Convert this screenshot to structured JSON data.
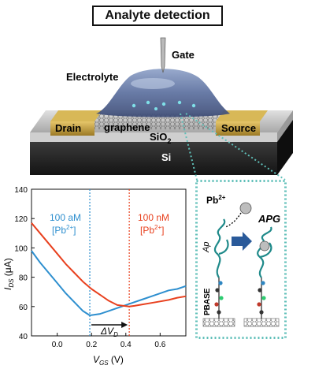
{
  "title": "Analyte detection",
  "device": {
    "gate": "Gate",
    "electrolyte": "Electrolyte",
    "drain": "Drain",
    "graphene": "graphene",
    "source": "Source",
    "oxide": {
      "base": "SiO",
      "sub": "2"
    },
    "substrate": "Si"
  },
  "inset": {
    "ion": {
      "base": "Pb",
      "sup": "2+"
    },
    "aptamer": "Ap",
    "complex": "APG",
    "linker": "PBASE"
  },
  "colors": {
    "curve_low": "#2e8fcf",
    "curve_high": "#e8401e",
    "inset_border": "#5fbfb8",
    "metal": "#c7a23a"
  },
  "chart_data": {
    "type": "line",
    "xlabel": {
      "base": "V",
      "sub": "GS",
      "unit": " (V)"
    },
    "ylabel": {
      "base": "I",
      "sub": "DS",
      "unit": " (μA)"
    },
    "xlim": [
      -0.15,
      0.75
    ],
    "ylim": [
      40,
      140
    ],
    "xticks": [
      "0.0",
      "0.2",
      "0.4",
      "0.6"
    ],
    "yticks": [
      "40",
      "60",
      "80",
      "100",
      "120",
      "140"
    ],
    "series": [
      {
        "name": "100 aM [Pb2+]",
        "label_line1": "100 aM",
        "label_line2": {
          "open": "[Pb",
          "sup": "2+",
          "close": "]"
        },
        "color": "#2e8fcf",
        "dirac_v": 0.19,
        "x": [
          -0.15,
          -0.1,
          -0.05,
          0.0,
          0.05,
          0.1,
          0.15,
          0.19,
          0.25,
          0.3,
          0.35,
          0.4,
          0.45,
          0.5,
          0.55,
          0.6,
          0.65,
          0.7,
          0.75
        ],
        "y": [
          98,
          90,
          83,
          76,
          69,
          63,
          57,
          54,
          55,
          57,
          59,
          61,
          63,
          65,
          67,
          69,
          71,
          72,
          74
        ]
      },
      {
        "name": "100 nM [Pb2+]",
        "label_line1": "100 nM",
        "label_line2": {
          "open": "[Pb",
          "sup": "2+",
          "close": "]"
        },
        "color": "#e8401e",
        "dirac_v": 0.42,
        "x": [
          -0.15,
          -0.1,
          -0.05,
          0.0,
          0.05,
          0.1,
          0.15,
          0.2,
          0.25,
          0.3,
          0.35,
          0.42,
          0.45,
          0.5,
          0.55,
          0.6,
          0.65,
          0.7,
          0.75
        ],
        "y": [
          117,
          110,
          103,
          96,
          89,
          83,
          77,
          72,
          68,
          64,
          61,
          60,
          60.5,
          61.5,
          62.5,
          63.5,
          64.5,
          66,
          67
        ]
      }
    ],
    "annotation": {
      "symbol": "ΔV",
      "sub": "D"
    },
    "grid": false
  }
}
